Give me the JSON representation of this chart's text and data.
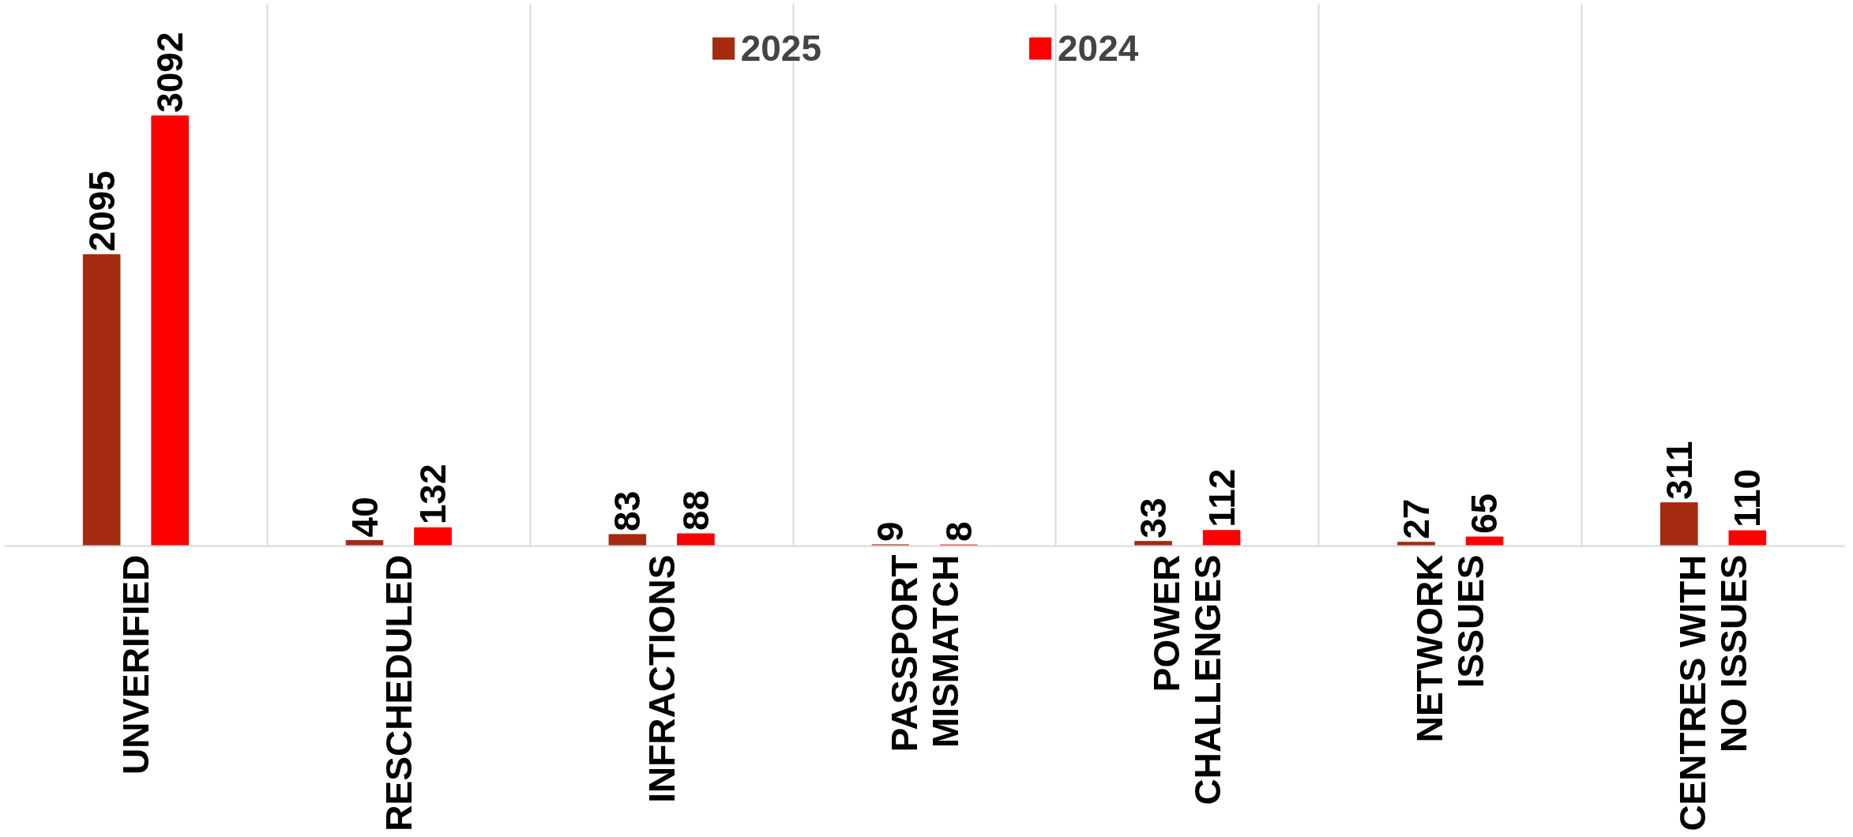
{
  "chart_data": {
    "type": "bar",
    "categories": [
      "UNVERIFIED",
      "RESCHEDULED",
      "INFRACTIONS",
      "PASSPORT MISMATCH",
      "POWER CHALLENGES",
      "NETWORK ISSUES",
      "CENTRES WITH NO ISSUES"
    ],
    "series": [
      {
        "name": "2025",
        "color": "#a52a0f",
        "values": [
          2095,
          40,
          83,
          9,
          33,
          27,
          311
        ]
      },
      {
        "name": "2024",
        "color": "#ff0000",
        "values": [
          3092,
          132,
          88,
          8,
          112,
          65,
          110
        ]
      }
    ],
    "ylim": [
      0,
      3900
    ],
    "data_labels": true,
    "legend": "top",
    "grid": "x",
    "tick_labels": "x"
  }
}
